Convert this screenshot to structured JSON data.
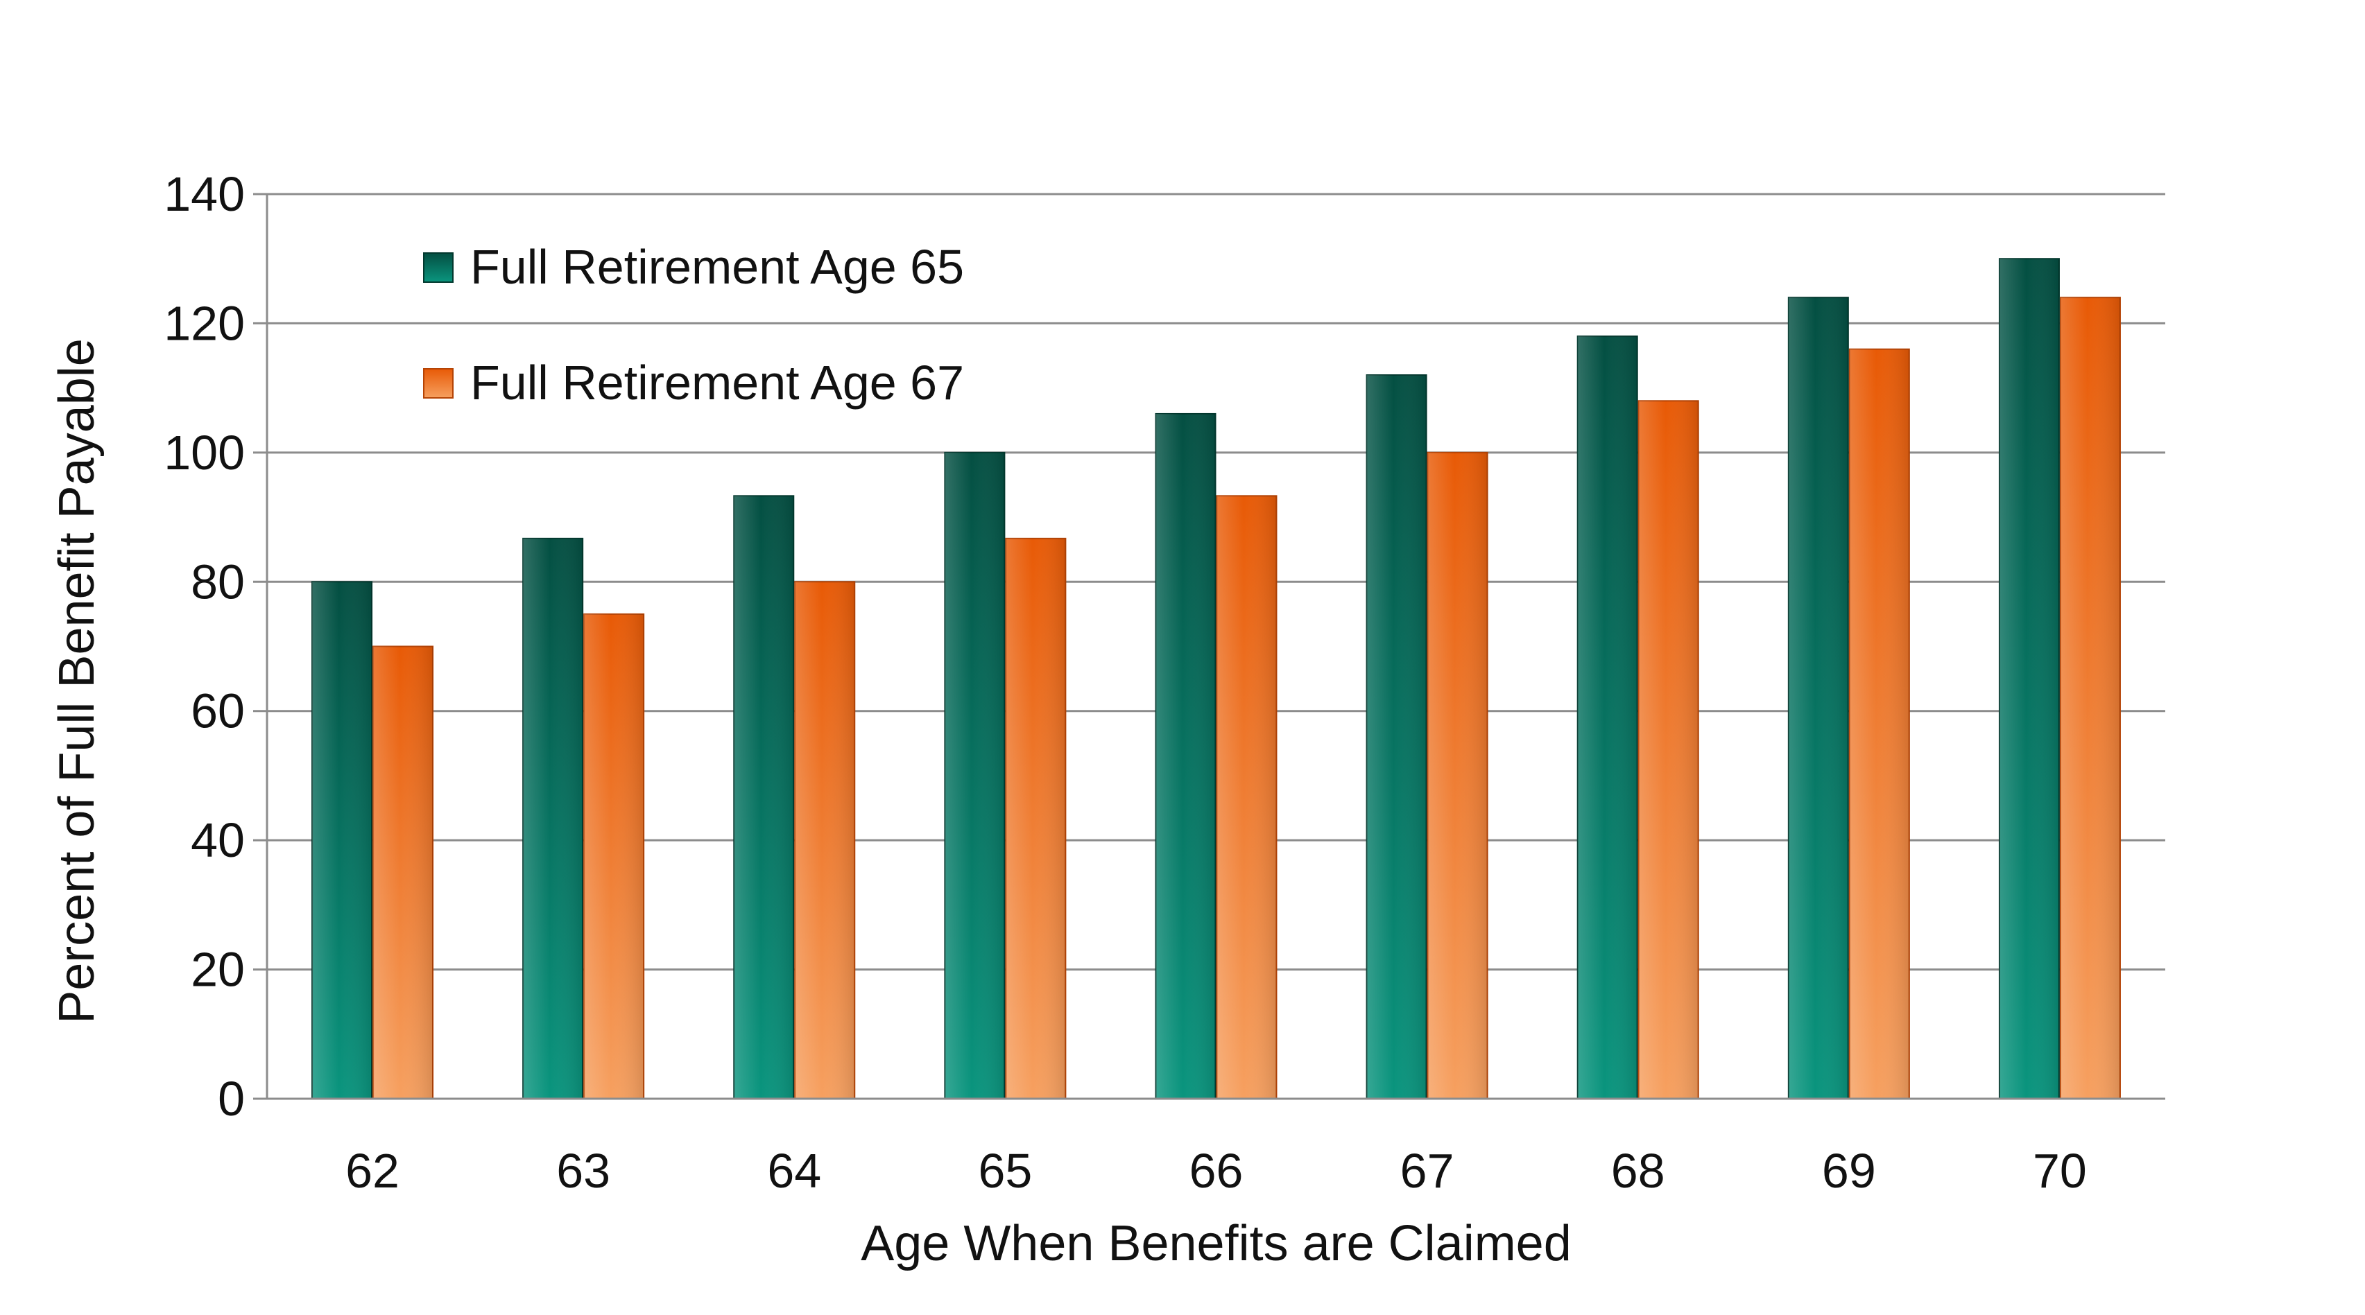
{
  "chart_data": {
    "type": "bar",
    "categories": [
      "62",
      "63",
      "64",
      "65",
      "66",
      "67",
      "68",
      "69",
      "70"
    ],
    "series": [
      {
        "name": "Full Retirement Age 65",
        "values": [
          80,
          86.7,
          93.3,
          100,
          106,
          112,
          118,
          124,
          130
        ],
        "color_top": "#044f42",
        "color_bottom": "#0a957e"
      },
      {
        "name": "Full Retirement Age 67",
        "values": [
          70,
          75,
          80,
          86.7,
          93.3,
          100,
          108,
          116,
          124
        ],
        "color_top": "#e85a06",
        "color_bottom": "#f6a060"
      }
    ],
    "title": "",
    "xlabel": "Age When Benefits are Claimed",
    "ylabel": "Percent of Full Benefit Payable",
    "ylim": [
      0,
      140
    ],
    "yticks": [
      0,
      20,
      40,
      60,
      80,
      100,
      120,
      140
    ],
    "grid": true,
    "legend_position": "top-left"
  }
}
